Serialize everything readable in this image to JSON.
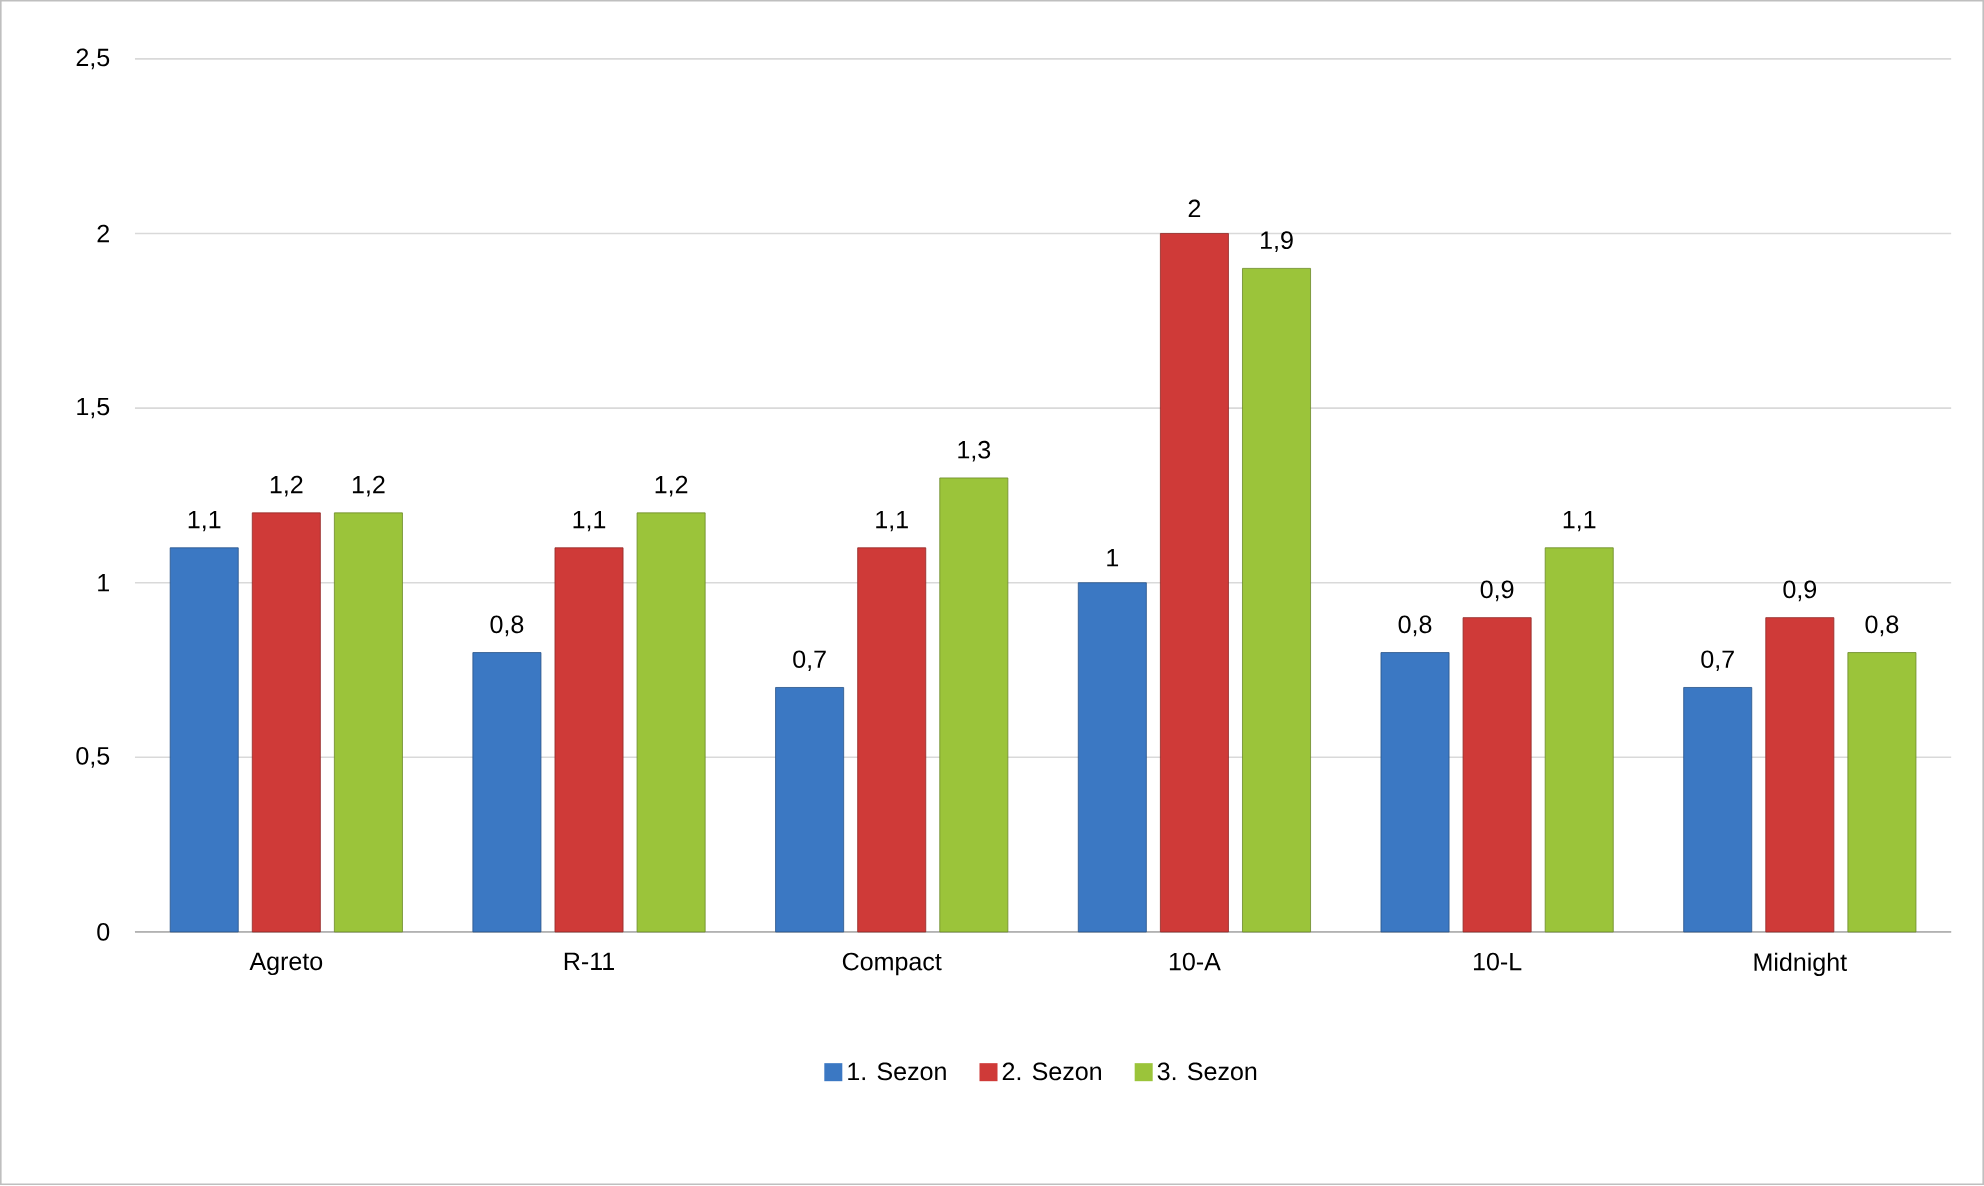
{
  "chart_data": {
    "type": "bar",
    "categories": [
      "Agreto",
      "R-11",
      "Compact",
      "10-A",
      "10-L",
      "Midnight"
    ],
    "series": [
      {
        "name": "1. Sezon",
        "color": "#3b78c3",
        "values": [
          1.1,
          0.8,
          0.7,
          1,
          0.8,
          0.7
        ],
        "value_labels": [
          "1,1",
          "0,8",
          "0,7",
          "1",
          "0,8",
          "0,7"
        ]
      },
      {
        "name": "2. Sezon",
        "color": "#cf3a38",
        "values": [
          1.2,
          1.1,
          1.1,
          2,
          0.9,
          0.9
        ],
        "value_labels": [
          "1,2",
          "1,1",
          "1,1",
          "2",
          "0,9",
          "0,9"
        ]
      },
      {
        "name": "3. Sezon",
        "color": "#9bc43a",
        "values": [
          1.2,
          1.2,
          1.3,
          1.9,
          1.1,
          0.8
        ],
        "value_labels": [
          "1,2",
          "1,2",
          "1,3",
          "1,9",
          "1,1",
          "0,8"
        ]
      }
    ],
    "ylim": [
      0,
      2.5
    ],
    "yticks": [
      0,
      {
        "value": 0.5,
        "label": "0,5"
      },
      1,
      {
        "value": 1.5,
        "label": "1,5"
      },
      2,
      {
        "value": 2.5,
        "label": "2,5"
      }
    ],
    "grid": "y",
    "legend": "bottom"
  }
}
